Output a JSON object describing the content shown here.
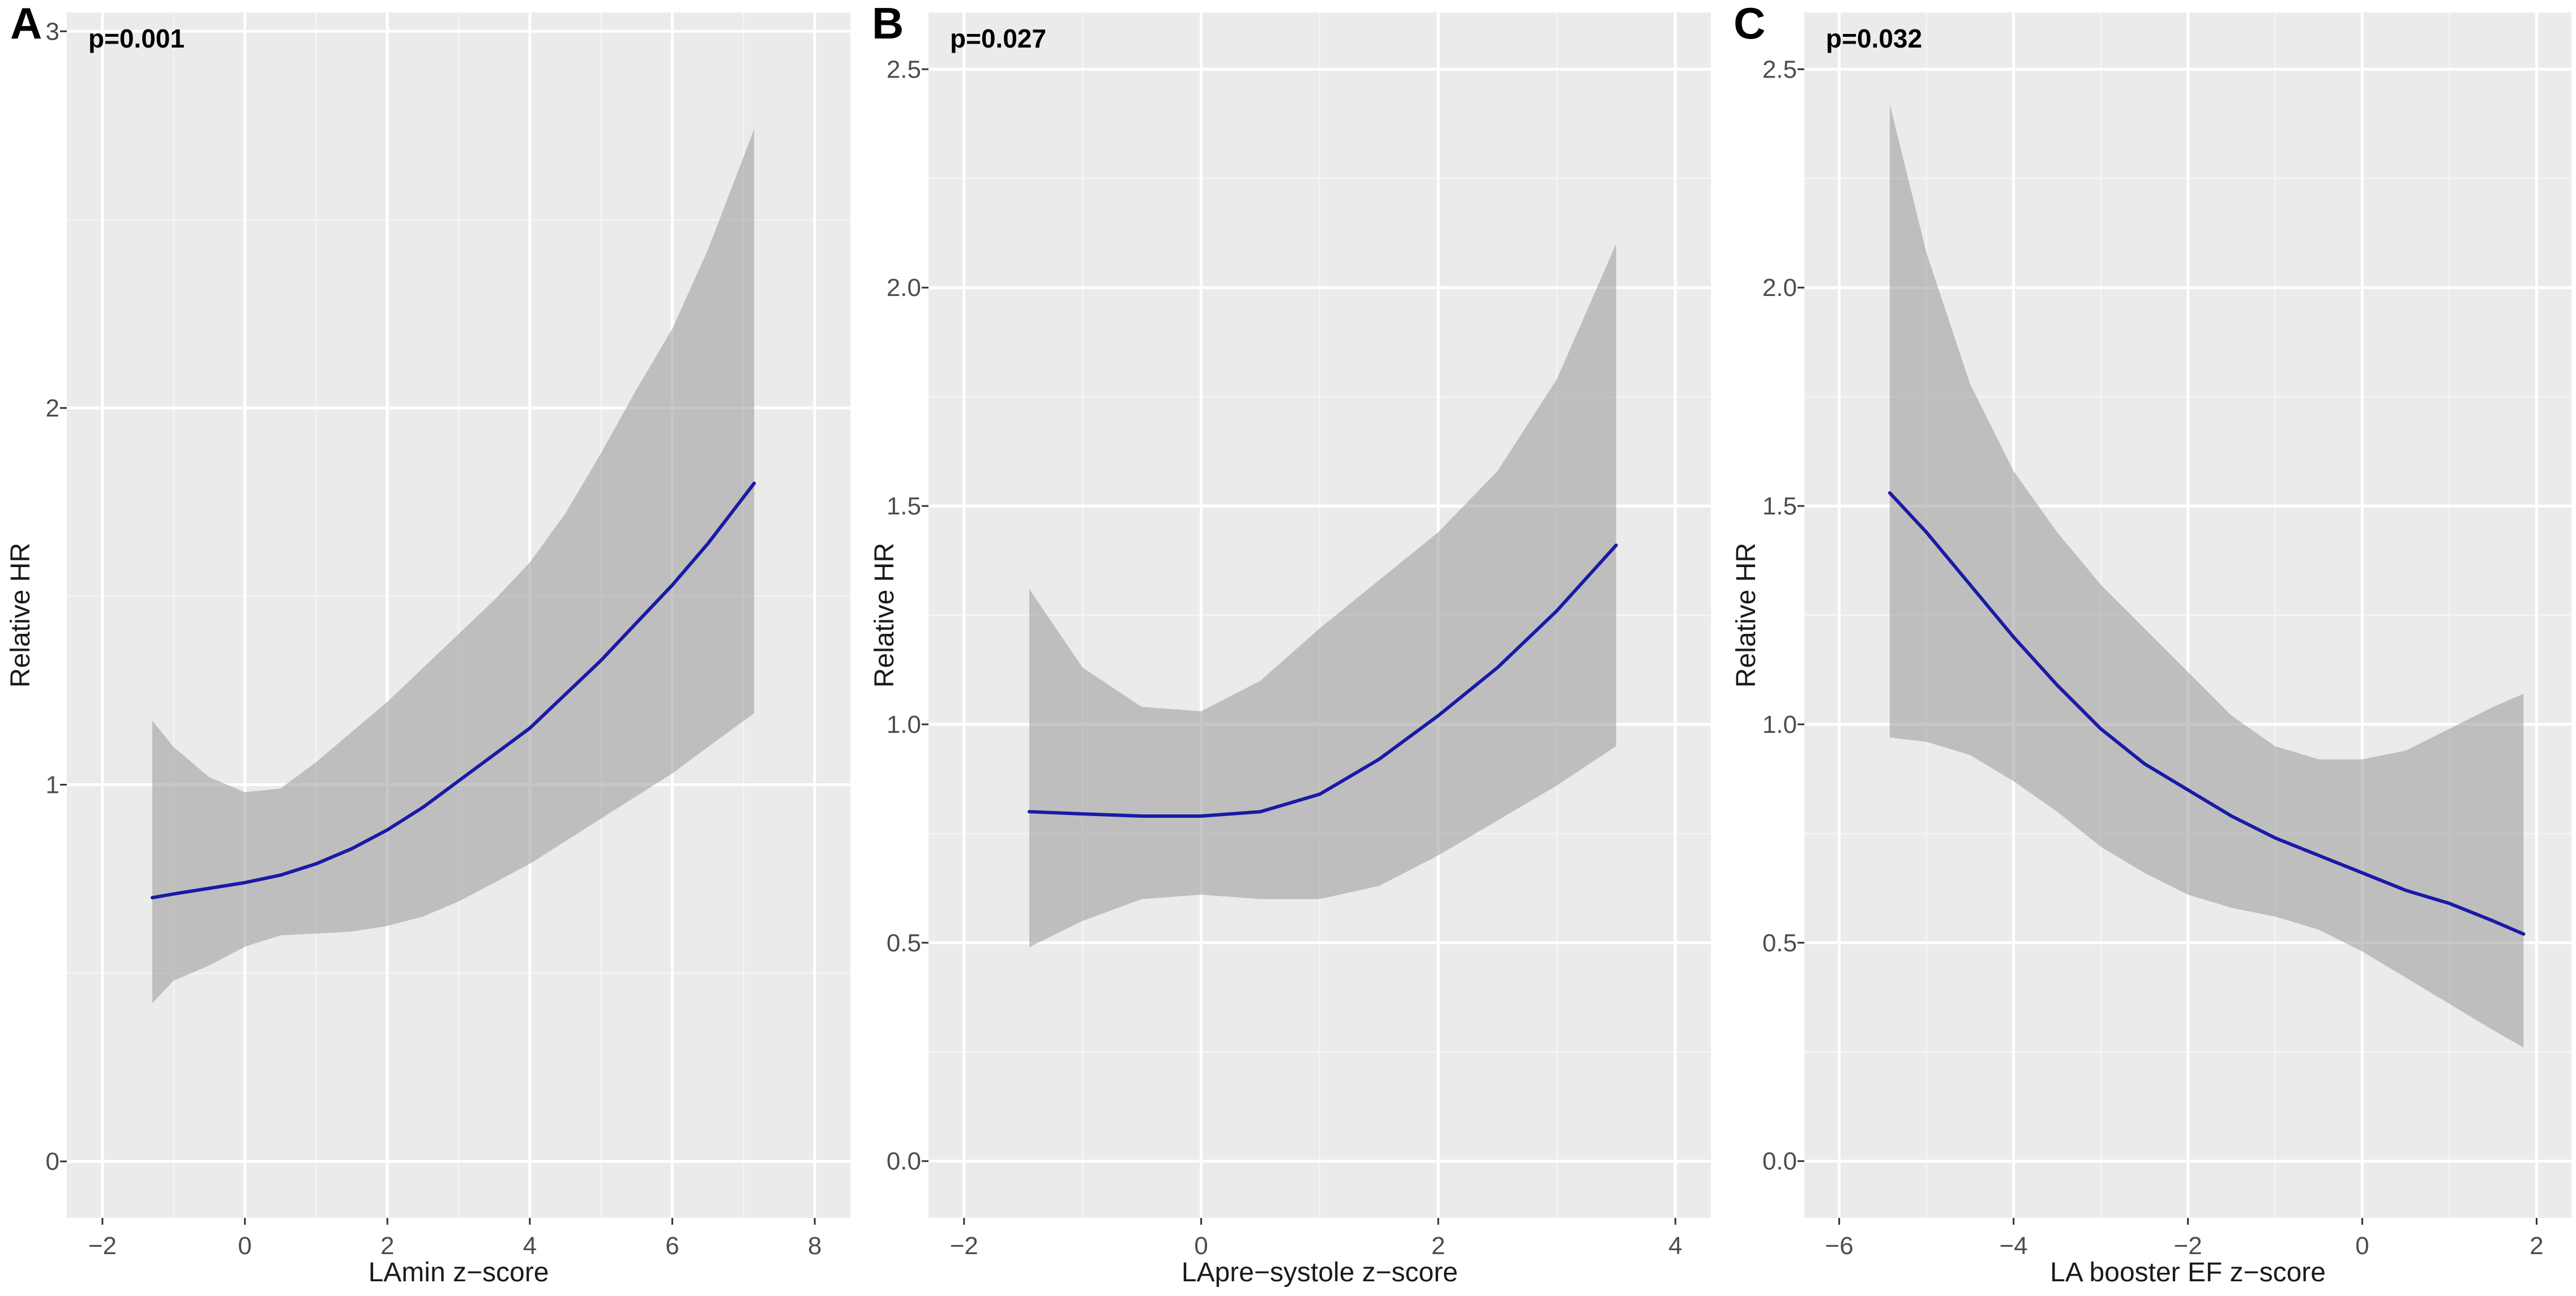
{
  "chart_data": [
    {
      "type": "line",
      "panel_label": "A",
      "annotation": "p=0.001",
      "xlabel": "LAmin z−score",
      "ylabel": "Relative HR",
      "xlim": [
        -2.5,
        8.5
      ],
      "ylim": [
        -0.15,
        3.05
      ],
      "x_ticks": [
        -2,
        0,
        2,
        4,
        6,
        8
      ],
      "x_tick_labels": [
        "−2",
        "0",
        "2",
        "4",
        "6",
        "8"
      ],
      "y_ticks": [
        0,
        1,
        2,
        3
      ],
      "y_tick_labels": [
        "0",
        "1",
        "2",
        "3"
      ],
      "grid": true,
      "series": [
        {
          "name": "Relative HR",
          "color": "#1a1aa6",
          "x": [
            -1.3,
            -1.0,
            -0.5,
            0.0,
            0.5,
            1.0,
            1.5,
            2.0,
            2.5,
            3.0,
            3.5,
            4.0,
            4.5,
            5.0,
            5.5,
            6.0,
            6.5,
            7.15
          ],
          "y": [
            0.7,
            0.71,
            0.725,
            0.74,
            0.76,
            0.79,
            0.83,
            0.88,
            0.94,
            1.01,
            1.08,
            1.15,
            1.24,
            1.33,
            1.43,
            1.53,
            1.64,
            1.8
          ],
          "ci_lower": [
            0.42,
            0.48,
            0.52,
            0.57,
            0.6,
            0.605,
            0.61,
            0.625,
            0.65,
            0.69,
            0.74,
            0.79,
            0.85,
            0.91,
            0.97,
            1.03,
            1.1,
            1.19
          ],
          "ci_upper": [
            1.17,
            1.1,
            1.02,
            0.98,
            0.99,
            1.06,
            1.14,
            1.22,
            1.31,
            1.4,
            1.49,
            1.59,
            1.72,
            1.88,
            2.05,
            2.21,
            2.42,
            2.74
          ]
        }
      ]
    },
    {
      "type": "line",
      "panel_label": "B",
      "annotation": "p=0.027",
      "xlabel": "LApre−systole z−score",
      "ylabel": "Relative HR",
      "xlim": [
        -2.3,
        4.3
      ],
      "ylim": [
        -0.13,
        2.63
      ],
      "x_ticks": [
        -2,
        0,
        2,
        4
      ],
      "x_tick_labels": [
        "−2",
        "0",
        "2",
        "4"
      ],
      "y_ticks": [
        0.0,
        0.5,
        1.0,
        1.5,
        2.0,
        2.5
      ],
      "y_tick_labels": [
        "0.0",
        "0.5",
        "1.0",
        "1.5",
        "2.0",
        "2.5"
      ],
      "grid": true,
      "series": [
        {
          "name": "Relative HR",
          "color": "#1a1aa6",
          "x": [
            -1.45,
            -1.0,
            -0.5,
            0.0,
            0.5,
            1.0,
            1.5,
            2.0,
            2.5,
            3.0,
            3.5
          ],
          "y": [
            0.8,
            0.795,
            0.79,
            0.79,
            0.8,
            0.84,
            0.92,
            1.02,
            1.13,
            1.26,
            1.41
          ],
          "ci_lower": [
            0.49,
            0.55,
            0.6,
            0.61,
            0.6,
            0.6,
            0.63,
            0.7,
            0.78,
            0.86,
            0.95
          ],
          "ci_upper": [
            1.31,
            1.13,
            1.04,
            1.03,
            1.1,
            1.22,
            1.33,
            1.44,
            1.58,
            1.79,
            2.1
          ]
        }
      ]
    },
    {
      "type": "line",
      "panel_label": "C",
      "annotation": "p=0.032",
      "xlabel": "LA booster EF z−score",
      "ylabel": "Relative HR",
      "xlim": [
        -6.4,
        2.4
      ],
      "ylim": [
        -0.13,
        2.63
      ],
      "x_ticks": [
        -6,
        -4,
        -2,
        0,
        2
      ],
      "x_tick_labels": [
        "−6",
        "−4",
        "−2",
        "0",
        "2"
      ],
      "y_ticks": [
        0.0,
        0.5,
        1.0,
        1.5,
        2.0,
        2.5
      ],
      "y_tick_labels": [
        "0.0",
        "0.5",
        "1.0",
        "1.5",
        "2.0",
        "2.5"
      ],
      "grid": true,
      "series": [
        {
          "name": "Relative HR",
          "color": "#1a1aa6",
          "x": [
            -5.42,
            -5.0,
            -4.5,
            -4.0,
            -3.5,
            -3.0,
            -2.5,
            -2.0,
            -1.5,
            -1.0,
            -0.5,
            0.0,
            0.5,
            1.0,
            1.5,
            1.85
          ],
          "y": [
            1.53,
            1.44,
            1.32,
            1.2,
            1.09,
            0.99,
            0.91,
            0.85,
            0.79,
            0.74,
            0.7,
            0.66,
            0.62,
            0.59,
            0.55,
            0.52
          ],
          "ci_lower": [
            0.97,
            0.96,
            0.93,
            0.87,
            0.8,
            0.72,
            0.66,
            0.61,
            0.58,
            0.56,
            0.53,
            0.48,
            0.42,
            0.36,
            0.3,
            0.26
          ],
          "ci_upper": [
            2.42,
            2.08,
            1.78,
            1.58,
            1.44,
            1.32,
            1.22,
            1.12,
            1.02,
            0.95,
            0.92,
            0.92,
            0.94,
            0.99,
            1.04,
            1.07
          ]
        }
      ]
    }
  ]
}
